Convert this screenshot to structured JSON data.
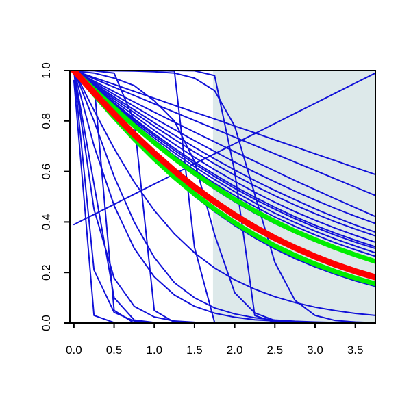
{
  "chart_data": {
    "type": "line",
    "title": "",
    "xlabel": "",
    "ylabel": "",
    "xlim": [
      -0.05,
      3.75
    ],
    "ylim": [
      0.0,
      1.0
    ],
    "grid": false,
    "legend": "none",
    "x_ticks": [
      0.0,
      0.5,
      1.0,
      1.5,
      2.0,
      2.5,
      3.0,
      3.5
    ],
    "x_tick_labels": [
      "0.0",
      "0.5",
      "1.0",
      "1.5",
      "2.0",
      "2.5",
      "3.0",
      "3.5"
    ],
    "y_ticks": [
      0.0,
      0.2,
      0.4,
      0.6,
      0.8,
      1.0
    ],
    "y_tick_labels": [
      "0.0",
      "0.2",
      "0.4",
      "0.6",
      "0.8",
      "1.0"
    ],
    "shaded_region": {
      "x": [
        1.73,
        3.75
      ],
      "y": [
        0.0,
        1.0
      ],
      "color": "#dde9ea"
    },
    "colors": {
      "curves": "#1010d8",
      "dense_band": "#0000ff",
      "highlight_outer": "#00ee00",
      "highlight_inner": "#ff0000",
      "axes": "#000000"
    },
    "x": [
      0.0,
      0.25,
      0.5,
      0.75,
      1.0,
      1.25,
      1.5,
      1.75,
      2.0,
      2.25,
      2.5,
      2.75,
      3.0,
      3.25,
      3.5,
      3.75
    ],
    "series": [
      {
        "color": "#1010d8",
        "width": 2,
        "values": [
          1.0,
          0.967,
          0.934,
          0.901,
          0.868,
          0.835,
          0.802,
          0.769,
          0.736,
          0.703,
          0.67,
          0.637,
          0.604,
          0.571,
          0.538,
          0.505
        ]
      },
      {
        "color": "#1010d8",
        "width": 2,
        "values": [
          1.0,
          0.958,
          0.916,
          0.875,
          0.835,
          0.795,
          0.756,
          0.717,
          0.678,
          0.64,
          0.602,
          0.564,
          0.528,
          0.492,
          0.457,
          0.422
        ]
      },
      {
        "color": "#1010d8",
        "width": 2,
        "values": [
          1.0,
          0.948,
          0.895,
          0.844,
          0.793,
          0.744,
          0.696,
          0.65,
          0.606,
          0.564,
          0.525,
          0.488,
          0.452,
          0.419,
          0.388,
          0.36
        ]
      },
      {
        "color": "#1010d8",
        "width": 2,
        "values": [
          1.0,
          0.972,
          0.945,
          0.917,
          0.89,
          0.862,
          0.835,
          0.808,
          0.78,
          0.753,
          0.725,
          0.698,
          0.67,
          0.643,
          0.615,
          0.588
        ]
      },
      {
        "color": "#1010d8",
        "width": 2,
        "values": [
          1.0,
          0.933,
          0.867,
          0.803,
          0.742,
          0.684,
          0.63,
          0.58,
          0.533,
          0.49,
          0.45,
          0.413,
          0.379,
          0.348,
          0.32,
          0.295
        ]
      },
      {
        "color": "#1010d8",
        "width": 2,
        "values": [
          1.0,
          0.93,
          0.862,
          0.796,
          0.733,
          0.674,
          0.619,
          0.568,
          0.52,
          0.476,
          0.435,
          0.398,
          0.364,
          0.333,
          0.305,
          0.278
        ]
      },
      {
        "color": "#1010d8",
        "width": 2,
        "values": [
          1.0,
          0.936,
          0.872,
          0.809,
          0.749,
          0.692,
          0.638,
          0.588,
          0.541,
          0.498,
          0.458,
          0.421,
          0.387,
          0.356,
          0.328,
          0.302
        ]
      },
      {
        "color": "#1010d8",
        "width": 2,
        "values": [
          1.0,
          0.928,
          0.857,
          0.789,
          0.724,
          0.663,
          0.606,
          0.553,
          0.505,
          0.461,
          0.42,
          0.383,
          0.349,
          0.318,
          0.29,
          0.264
        ]
      },
      {
        "color": "#1010d8",
        "width": 2,
        "values": [
          1.0,
          0.922,
          0.847,
          0.775,
          0.707,
          0.643,
          0.584,
          0.53,
          0.48,
          0.435,
          0.394,
          0.357,
          0.323,
          0.293,
          0.265,
          0.24
        ]
      },
      {
        "color": "#1010d8",
        "width": 2,
        "values": [
          1.0,
          0.94,
          0.88,
          0.821,
          0.763,
          0.708,
          0.656,
          0.607,
          0.561,
          0.518,
          0.478,
          0.441,
          0.407,
          0.376,
          0.347,
          0.32
        ]
      },
      {
        "color": "#1010d8",
        "width": 2,
        "values": [
          1.0,
          0.944,
          0.888,
          0.833,
          0.779,
          0.727,
          0.677,
          0.63,
          0.585,
          0.543,
          0.504,
          0.467,
          0.433,
          0.401,
          0.372,
          0.345
        ]
      },
      {
        "color": "#1010d8",
        "width": 2,
        "values": [
          1.0,
          0.953,
          0.905,
          0.858,
          0.811,
          0.766,
          0.722,
          0.679,
          0.637,
          0.597,
          0.559,
          0.522,
          0.487,
          0.454,
          0.423,
          0.394
        ]
      },
      {
        "color": "#1010d8",
        "width": 2,
        "values": [
          0.39,
          0.43,
          0.47,
          0.51,
          0.55,
          0.59,
          0.63,
          0.67,
          0.71,
          0.75,
          0.79,
          0.83,
          0.87,
          0.91,
          0.95,
          0.99
        ]
      },
      {
        "color": "#1010d8",
        "width": 2,
        "values": [
          1.0,
          0.842,
          0.691,
          0.558,
          0.446,
          0.353,
          0.278,
          0.218,
          0.171,
          0.134,
          0.104,
          0.081,
          0.063,
          0.049,
          0.038,
          0.03
        ]
      },
      {
        "color": "#1010d8",
        "width": 2,
        "values": [
          1.0,
          0.905,
          0.813,
          0.726,
          0.645,
          0.57,
          0.502,
          0.441,
          0.386,
          0.337,
          0.293,
          0.255,
          0.222,
          0.193,
          0.167,
          0.145
        ]
      },
      {
        "color": "#1010d8",
        "width": 2,
        "values": [
          1.0,
          0.702,
          0.465,
          0.296,
          0.183,
          0.111,
          0.066,
          0.039,
          0.023,
          0.013,
          0.008,
          0.004,
          0.003,
          0.001,
          0.001,
          0.0
        ]
      },
      {
        "color": "#1010d8",
        "width": 2,
        "values": [
          1.0,
          0.45,
          0.178,
          0.066,
          0.024,
          0.008,
          0.003,
          0.001,
          0.0,
          0.0,
          0.0,
          0.0,
          0.0,
          0.0,
          0.0,
          0.0
        ]
      },
      {
        "color": "#1010d8",
        "width": 2,
        "values": [
          1.0,
          0.21,
          0.042,
          0.008,
          0.002,
          0.0,
          0.0,
          0.0,
          0.0,
          0.0,
          0.0,
          0.0,
          0.0,
          0.0,
          0.0,
          0.0
        ]
      },
      {
        "color": "#1010d8",
        "width": 2,
        "values": [
          0.96,
          0.03,
          0.002,
          0.0,
          0.0,
          0.0,
          0.0,
          0.0,
          0.0,
          0.0,
          0.0,
          0.0,
          0.0,
          0.0,
          0.0,
          0.0
        ]
      },
      {
        "color": "#1010d8",
        "width": 2,
        "values": [
          0.998,
          0.99,
          0.97,
          0.94,
          0.88,
          0.8,
          0.64,
          0.35,
          0.12,
          0.04,
          0.01,
          0.003,
          0.001,
          0.0,
          0.0,
          0.0
        ]
      },
      {
        "color": "#1010d8",
        "width": 2,
        "values": [
          1.0,
          1.0,
          0.999,
          0.998,
          0.995,
          0.99,
          0.97,
          0.92,
          0.78,
          0.51,
          0.24,
          0.09,
          0.03,
          0.01,
          0.004,
          0.001
        ]
      },
      {
        "color": "#1010d8",
        "width": 2,
        "values": [
          1.0,
          0.999,
          0.99,
          0.8,
          0.05,
          0.003,
          0.0,
          0.0,
          0.0,
          0.0,
          0.0,
          0.0,
          0.0,
          0.0,
          0.0,
          0.0
        ]
      },
      {
        "color": "#1010d8",
        "width": 2,
        "values": [
          1.0,
          1.0,
          1.0,
          1.0,
          1.0,
          0.998,
          0.3,
          0.002,
          0.0,
          0.0,
          0.0,
          0.0,
          0.0,
          0.0,
          0.0,
          0.0
        ]
      },
      {
        "color": "#1010d8",
        "width": 2,
        "values": [
          1.0,
          1.0,
          1.0,
          1.0,
          1.0,
          1.0,
          0.999,
          0.98,
          0.6,
          0.03,
          0.002,
          0.0,
          0.0,
          0.0,
          0.0,
          0.0
        ]
      },
      {
        "color": "#1010d8",
        "width": 2,
        "values": [
          1.0,
          0.95,
          0.05,
          0.0,
          0.0,
          0.0,
          0.0,
          0.0,
          0.0,
          0.0,
          0.0,
          0.0,
          0.0,
          0.0,
          0.0,
          0.0
        ]
      },
      {
        "color": "#1010d8",
        "width": 2,
        "values": [
          1.0,
          0.55,
          0.1,
          0.012,
          0.002,
          0.0,
          0.0,
          0.0,
          0.0,
          0.0,
          0.0,
          0.0,
          0.0,
          0.0,
          0.0,
          0.0
        ]
      },
      {
        "color": "#1010d8",
        "width": 2,
        "values": [
          1.0,
          0.8,
          0.58,
          0.4,
          0.26,
          0.16,
          0.1,
          0.06,
          0.036,
          0.021,
          0.012,
          0.007,
          0.004,
          0.002,
          0.001,
          0.001
        ]
      },
      {
        "color": "#00ee00",
        "width": 7,
        "values": [
          1.0,
          0.925,
          0.852,
          0.781,
          0.714,
          0.651,
          0.593,
          0.539,
          0.489,
          0.444,
          0.402,
          0.364,
          0.33,
          0.298,
          0.27,
          0.244
        ]
      },
      {
        "color": "#00ee00",
        "width": 7,
        "values": [
          1.0,
          0.906,
          0.815,
          0.729,
          0.65,
          0.577,
          0.511,
          0.451,
          0.397,
          0.349,
          0.306,
          0.268,
          0.234,
          0.204,
          0.178,
          0.155
        ]
      },
      {
        "color": "#ff0000",
        "width": 9,
        "values": [
          1.0,
          0.912,
          0.828,
          0.747,
          0.672,
          0.602,
          0.538,
          0.48,
          0.427,
          0.379,
          0.336,
          0.298,
          0.263,
          0.232,
          0.205,
          0.181
        ]
      }
    ]
  }
}
